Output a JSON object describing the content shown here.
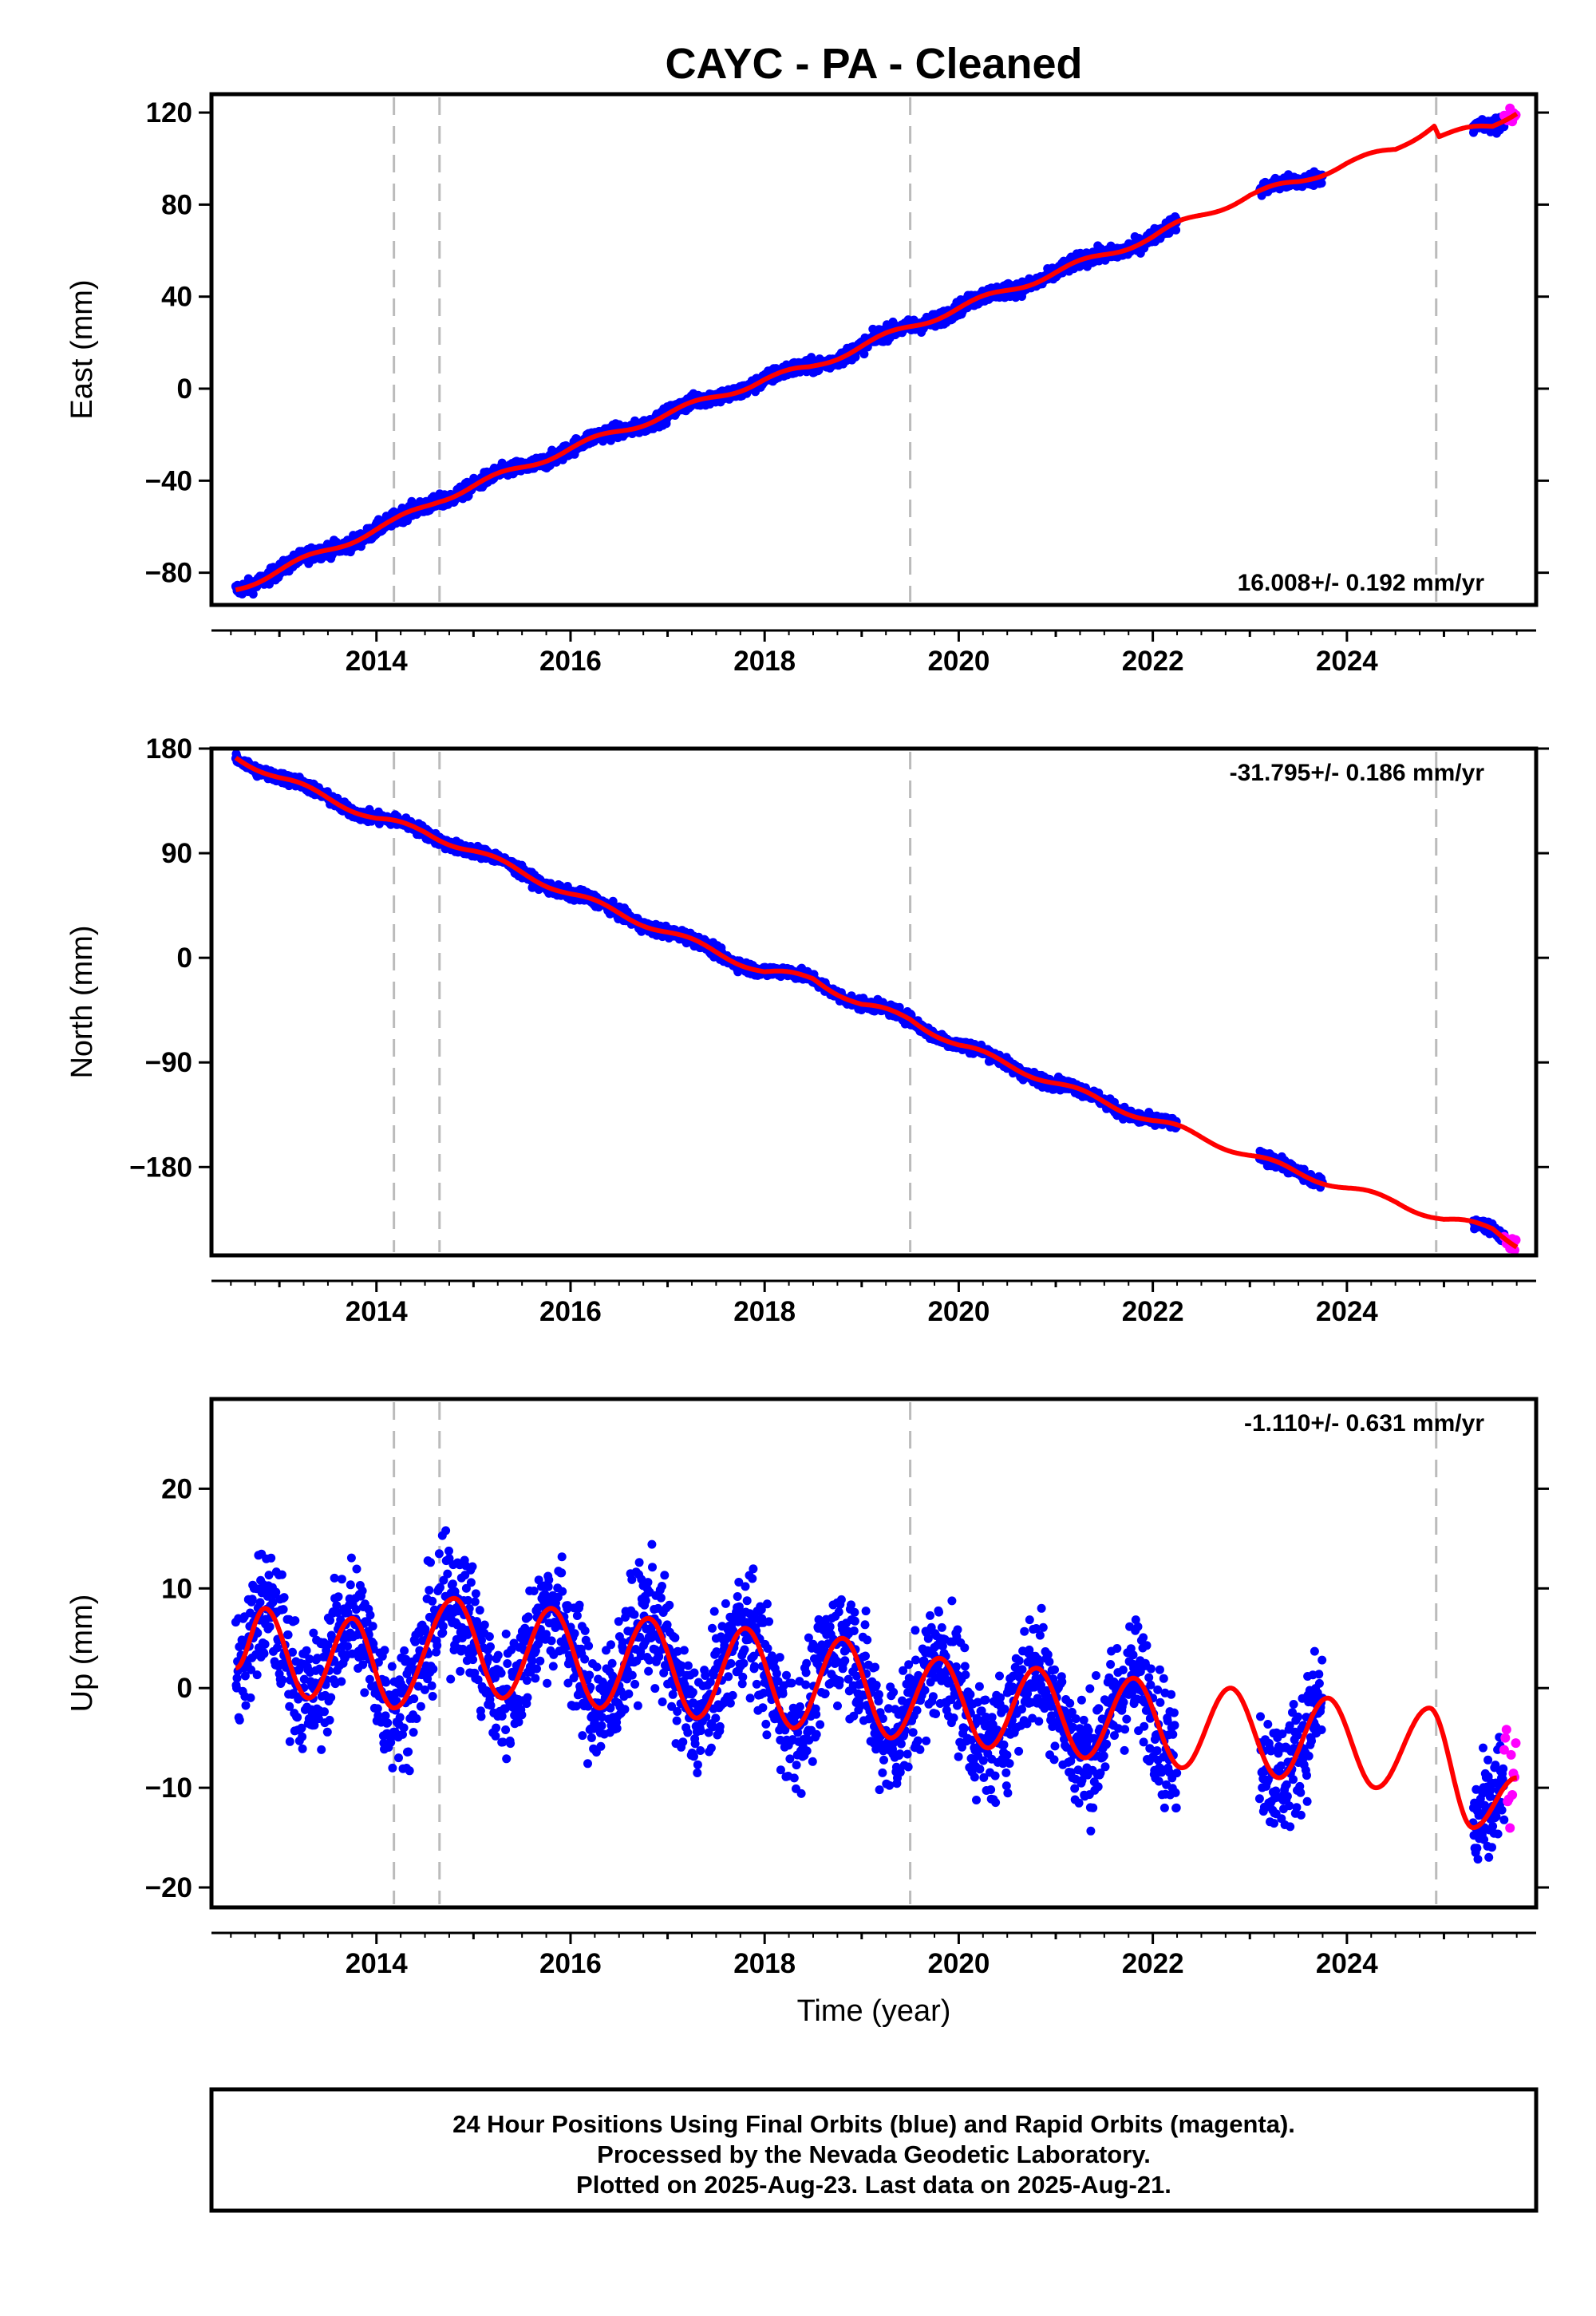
{
  "chart_data": [
    {
      "type": "scatter",
      "title": "CAYC  - PA - Cleaned",
      "ylabel": "East (mm)",
      "xlabel": "",
      "xlim": [
        2012.3,
        2025.95
      ],
      "ylim": [
        -94,
        128
      ],
      "x_ticks": [
        2014,
        2016,
        2018,
        2020,
        2022,
        2024
      ],
      "y_ticks": [
        -80,
        -40,
        0,
        40,
        80,
        120
      ],
      "rate_text": "16.008+/- 0.192 mm/yr",
      "rate_position": "bottom-right",
      "velocity_mm_yr": 16.008,
      "discontinuities": [
        2014.18,
        2014.65,
        2019.5,
        2024.92
      ],
      "fit_curve": {
        "x": [
          2012.55,
          2014.18,
          2014.65,
          2016.0,
          2018.0,
          2018.45,
          2019.5,
          2020.0,
          2022.0,
          2022.3,
          2023.0,
          2023.5,
          2024.0,
          2024.5,
          2024.9,
          2024.95,
          2025.5,
          2025.75
        ],
        "y": [
          -87,
          -58,
          -48,
          -26,
          4,
          9,
          27,
          35,
          66,
          72,
          84,
          90,
          98,
          104,
          115,
          110,
          114,
          121
        ]
      },
      "series": [
        {
          "name": "Final Orbits",
          "color": "#0000ff",
          "segments": [
            [
              2012.55,
              2022.25
            ],
            [
              2023.1,
              2023.75
            ],
            [
              2025.3,
              2025.62
            ]
          ]
        },
        {
          "name": "Rapid Orbits",
          "color": "#ff00ff",
          "segments": [
            [
              2025.62,
              2025.75
            ]
          ]
        }
      ]
    },
    {
      "type": "scatter",
      "ylabel": "North (mm)",
      "xlabel": "",
      "xlim": [
        2012.3,
        2025.95
      ],
      "ylim": [
        -256,
        180
      ],
      "x_ticks": [
        2014,
        2016,
        2018,
        2020,
        2022,
        2024
      ],
      "y_ticks": [
        -180,
        -90,
        0,
        90,
        180
      ],
      "rate_text": "-31.795+/- 0.186 mm/yr",
      "rate_position": "top-right",
      "velocity_mm_yr": -31.795,
      "discontinuities": [
        2014.18,
        2014.65,
        2019.5,
        2024.92
      ],
      "fit_curve": {
        "x": [
          2012.55,
          2013.0,
          2014.0,
          2014.5,
          2015.0,
          2016.0,
          2017.0,
          2018.0,
          2018.5,
          2019.0,
          2019.5,
          2020.0,
          2021.0,
          2022.0,
          2022.3,
          2023.0,
          2023.5,
          2024.0,
          2024.5,
          2025.0,
          2025.5,
          2025.75
        ],
        "y": [
          173,
          155,
          120,
          108,
          92,
          55,
          22,
          -12,
          -18,
          -40,
          -53,
          -75,
          -108,
          -140,
          -148,
          -170,
          -185,
          -198,
          -210,
          -225,
          -233,
          -246
        ]
      },
      "series": [
        {
          "name": "Final Orbits",
          "color": "#0000ff",
          "segments": [
            [
              2012.55,
              2022.25
            ],
            [
              2023.1,
              2023.75
            ],
            [
              2025.3,
              2025.62
            ]
          ]
        },
        {
          "name": "Rapid Orbits",
          "color": "#ff00ff",
          "segments": [
            [
              2025.62,
              2025.75
            ]
          ]
        }
      ]
    },
    {
      "type": "scatter",
      "ylabel": "Up (mm)",
      "xlabel": "Time (year)",
      "xlim": [
        2012.3,
        2025.95
      ],
      "ylim": [
        -22,
        29
      ],
      "x_ticks": [
        2014,
        2016,
        2018,
        2020,
        2022,
        2024
      ],
      "y_ticks": [
        -20,
        -10,
        0,
        10,
        20
      ],
      "rate_text": "-1.110+/- 0.631 mm/yr",
      "rate_position": "top-right",
      "velocity_mm_yr": -1.11,
      "seasonal_amplitude_mm": 4.5,
      "discontinuities": [
        2014.18,
        2014.65,
        2019.5,
        2024.92
      ],
      "fit_curve": {
        "x": [
          2012.55,
          2012.85,
          2013.3,
          2013.75,
          2014.18,
          2014.8,
          2015.3,
          2015.8,
          2016.3,
          2016.8,
          2017.3,
          2017.8,
          2018.3,
          2018.8,
          2019.3,
          2019.8,
          2020.3,
          2020.8,
          2021.3,
          2021.8,
          2022.3,
          2022.8,
          2023.3,
          2023.8,
          2024.3,
          2024.85,
          2025.3,
          2025.75
        ],
        "y": [
          2,
          8,
          -1,
          7,
          -2,
          9,
          -1,
          8,
          -2,
          7,
          -3,
          6,
          -4,
          5,
          -5,
          3,
          -6,
          2,
          -7,
          1,
          -8,
          0,
          -9,
          -1,
          -10,
          -2,
          -14,
          -9
        ]
      },
      "series": [
        {
          "name": "Final Orbits",
          "color": "#0000ff",
          "segments": [
            [
              2012.55,
              2022.25
            ],
            [
              2023.1,
              2023.75
            ],
            [
              2025.3,
              2025.62
            ]
          ]
        },
        {
          "name": "Rapid Orbits",
          "color": "#ff00ff",
          "segments": [
            [
              2025.62,
              2025.75
            ]
          ]
        }
      ]
    }
  ],
  "footer": {
    "line1": "24 Hour Positions Using Final Orbits (blue) and Rapid Orbits (magenta).",
    "line2": "Processed by the Nevada Geodetic Laboratory.",
    "line3": "Plotted on 2025-Aug-23. Last data on 2025-Aug-21."
  }
}
